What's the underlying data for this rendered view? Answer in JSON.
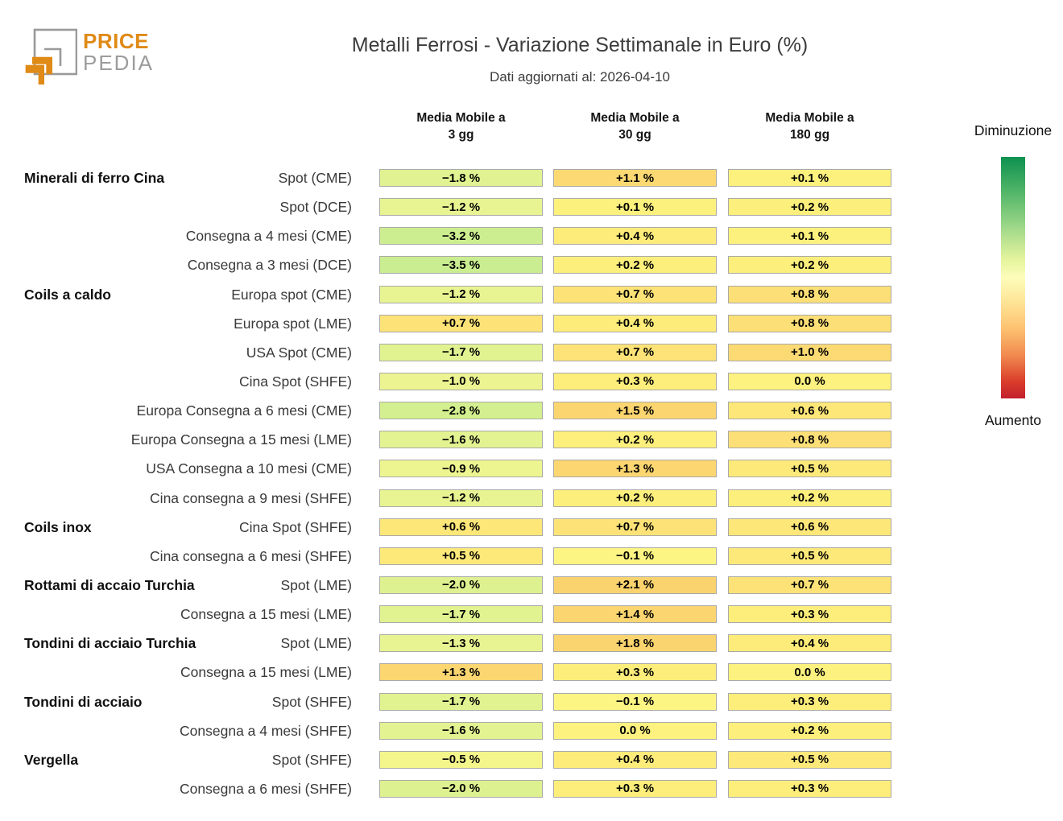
{
  "logo": {
    "brand_top": "PRICE",
    "brand_bottom": "PEDIA",
    "orange": "#e08a17",
    "gray": "#9c9c9c"
  },
  "header": {
    "title": "Metalli Ferrosi - Variazione Settimanale in Euro (%)",
    "subtitle": "Dati aggiornati al: 2026-04-10"
  },
  "legend": {
    "top_label": "Diminuzione",
    "bottom_label": "Aumento",
    "gradient_stops": [
      "#0d9150 0%",
      "#4fb467 14%",
      "#a3da8b 30%",
      "#e3f39c 42%",
      "#fdfdba 50%",
      "#fee597 60%",
      "#fdc271 71%",
      "#f18b50 82%",
      "#db3d2b 93%",
      "#c2202c 100%"
    ]
  },
  "chart_data": {
    "type": "heatmap",
    "title": "Metalli Ferrosi - Variazione Settimanale in Euro (%)",
    "subtitle": "Dati aggiornati al: 2026-04-10",
    "unit": "%",
    "value_note": "weekly percent change; green = decrease, red/orange = increase",
    "columns": [
      {
        "line1": "Media Mobile a",
        "line2": "3 gg"
      },
      {
        "line1": "Media Mobile a",
        "line2": "30 gg"
      },
      {
        "line1": "Media Mobile a",
        "line2": "180 gg"
      }
    ],
    "rows": [
      {
        "category": "Minerali di ferro Cina",
        "label": "Spot (CME)",
        "values": [
          -1.8,
          1.1,
          0.1
        ]
      },
      {
        "category": "",
        "label": "Spot (DCE)",
        "values": [
          -1.2,
          0.1,
          0.2
        ]
      },
      {
        "category": "",
        "label": "Consegna a 4 mesi (CME)",
        "values": [
          -3.2,
          0.4,
          0.1
        ]
      },
      {
        "category": "",
        "label": "Consegna a 3 mesi (DCE)",
        "values": [
          -3.5,
          0.2,
          0.2
        ]
      },
      {
        "category": "Coils a caldo",
        "label": "Europa spot (CME)",
        "values": [
          -1.2,
          0.7,
          0.8
        ]
      },
      {
        "category": "",
        "label": "Europa spot (LME)",
        "values": [
          0.7,
          0.4,
          0.8
        ]
      },
      {
        "category": "",
        "label": "USA Spot (CME)",
        "values": [
          -1.7,
          0.7,
          1.0
        ]
      },
      {
        "category": "",
        "label": "Cina Spot (SHFE)",
        "values": [
          -1.0,
          0.3,
          0.0
        ]
      },
      {
        "category": "",
        "label": "Europa Consegna a 6 mesi (CME)",
        "values": [
          -2.8,
          1.5,
          0.6
        ]
      },
      {
        "category": "",
        "label": "Europa Consegna a 15 mesi (LME)",
        "values": [
          -1.6,
          0.2,
          0.8
        ]
      },
      {
        "category": "",
        "label": "USA Consegna a 10 mesi (CME)",
        "values": [
          -0.9,
          1.3,
          0.5
        ]
      },
      {
        "category": "",
        "label": "Cina consegna a 9 mesi (SHFE)",
        "values": [
          -1.2,
          0.2,
          0.2
        ]
      },
      {
        "category": "Coils inox",
        "label": "Cina Spot (SHFE)",
        "values": [
          0.6,
          0.7,
          0.6
        ]
      },
      {
        "category": "",
        "label": "Cina consegna a 6 mesi (SHFE)",
        "values": [
          0.5,
          -0.1,
          0.5
        ]
      },
      {
        "category": "Rottami di accaio Turchia",
        "label": "Spot (LME)",
        "values": [
          -2.0,
          2.1,
          0.7
        ]
      },
      {
        "category": "",
        "label": "Consegna a 15 mesi (LME)",
        "values": [
          -1.7,
          1.4,
          0.3
        ]
      },
      {
        "category": "Tondini di acciaio Turchia",
        "label": "Spot (LME)",
        "values": [
          -1.3,
          1.8,
          0.4
        ]
      },
      {
        "category": "",
        "label": "Consegna a 15 mesi (LME)",
        "values": [
          1.3,
          0.3,
          0.0
        ]
      },
      {
        "category": "Tondini di acciaio",
        "label": "Spot (SHFE)",
        "values": [
          -1.7,
          -0.1,
          0.3
        ]
      },
      {
        "category": "",
        "label": "Consegna a 4 mesi (SHFE)",
        "values": [
          -1.6,
          0.0,
          0.2
        ]
      },
      {
        "category": "Vergella",
        "label": "Spot (SHFE)",
        "values": [
          -0.5,
          0.4,
          0.5
        ]
      },
      {
        "category": "",
        "label": "Consegna a 6 mesi (SHFE)",
        "values": [
          -2.0,
          0.3,
          0.3
        ]
      }
    ],
    "color_scale": {
      "midpoint_color": "#fdf27f",
      "stops": [
        [
          -3.5,
          "#c9ed90"
        ],
        [
          -2.4,
          "#d8f08f"
        ],
        [
          -1.5,
          "#e4f392"
        ],
        [
          -0.8,
          "#eef590"
        ],
        [
          -0.2,
          "#faf787"
        ],
        [
          0.0,
          "#fdf27f"
        ],
        [
          0.3,
          "#fdee7b"
        ],
        [
          0.6,
          "#fde779"
        ],
        [
          0.9,
          "#fcdb74"
        ],
        [
          1.4,
          "#fbd570"
        ],
        [
          2.1,
          "#fad36e"
        ]
      ]
    }
  }
}
